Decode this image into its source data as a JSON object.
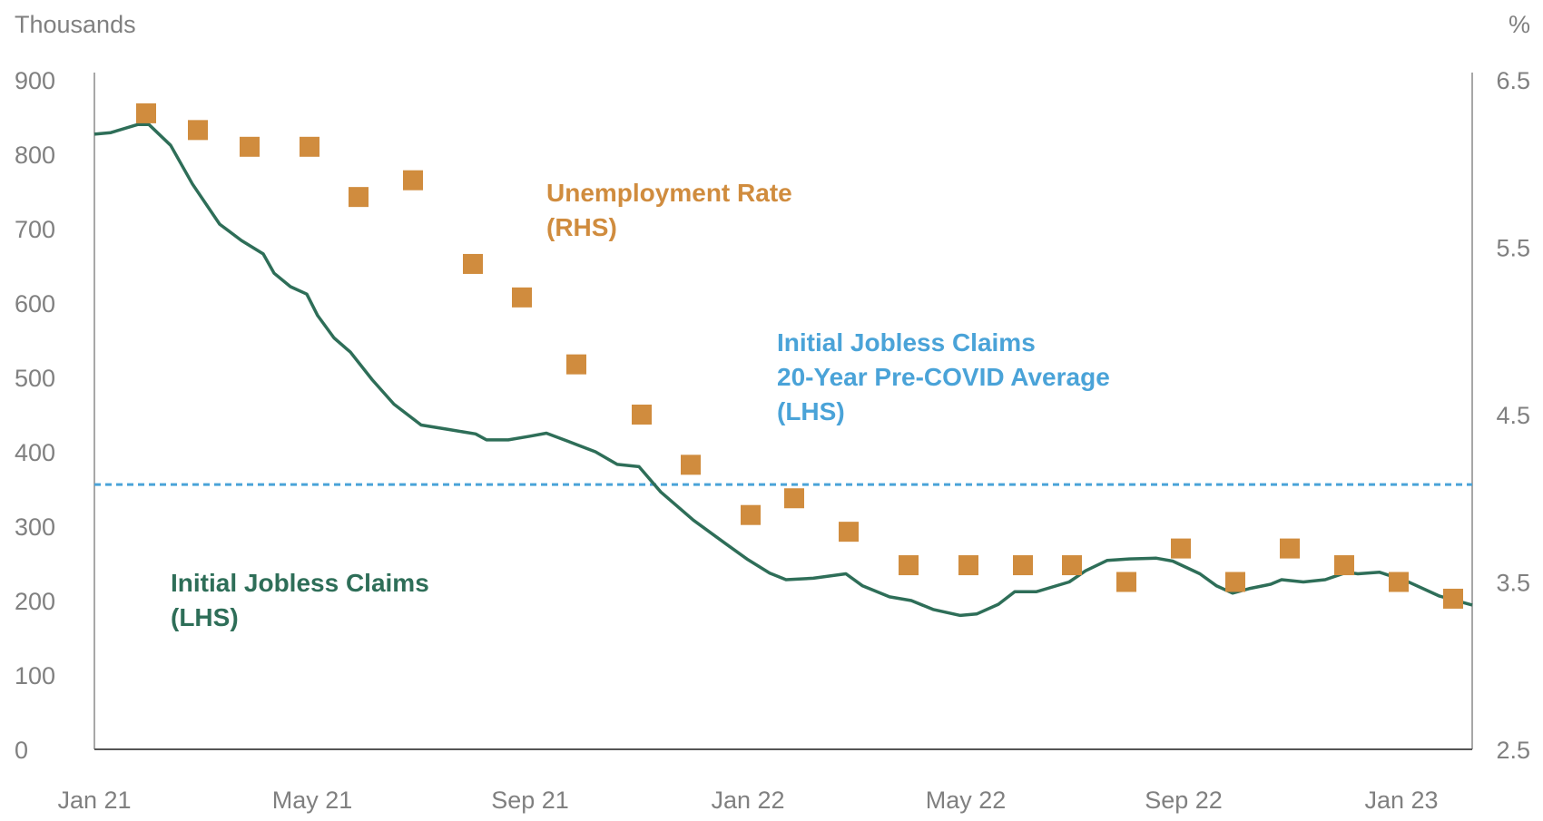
{
  "chart_data": {
    "type": "line",
    "left_axis": {
      "unit_label": "Thousands",
      "ticks": [
        "900",
        "800",
        "700",
        "600",
        "500",
        "400",
        "300",
        "200",
        "100",
        "0"
      ],
      "range": [
        0,
        900
      ]
    },
    "right_axis": {
      "unit_label": "%",
      "ticks": [
        "6.5",
        "5.5",
        "4.5",
        "3.5",
        "2.5"
      ],
      "range": [
        2.5,
        6.5
      ]
    },
    "x_axis": {
      "ticks": [
        "Jan 21",
        "May 21",
        "Sep 21",
        "Jan 22",
        "May 22",
        "Sep 22",
        "Jan 23"
      ],
      "range_months": [
        0,
        25.3
      ]
    },
    "colors": {
      "claims": "#2e6e58",
      "unemployment": "#d08c3e",
      "average": "#4aa3d8",
      "axis": "#8a8a8a"
    },
    "labels": {
      "unemployment": [
        "Unemployment Rate",
        "(RHS)"
      ],
      "average": [
        "Initial Jobless Claims",
        "20-Year Pre-COVID Average",
        "(LHS)"
      ],
      "claims": [
        "Initial Jobless Claims",
        "(LHS)"
      ]
    },
    "series": [
      {
        "name": "Initial Jobless Claims (LHS)",
        "axis": "left",
        "x": [
          0,
          0.3,
          0.8,
          1.0,
          1.4,
          1.8,
          2.3,
          2.7,
          3.1,
          3.3,
          3.6,
          3.9,
          4.1,
          4.4,
          4.7,
          5.1,
          5.5,
          6.0,
          6.5,
          7.0,
          7.2,
          7.6,
          8.0,
          8.3,
          8.7,
          9.2,
          9.6,
          10.0,
          10.4,
          11.0,
          11.6,
          12.0,
          12.4,
          12.7,
          13.2,
          13.8,
          14.1,
          14.6,
          15.0,
          15.4,
          15.9,
          16.2,
          16.6,
          16.9,
          17.3,
          17.9,
          18.2,
          18.6,
          19.0,
          19.5,
          19.8,
          20.3,
          20.6,
          20.9,
          21.2,
          21.6,
          21.8,
          22.2,
          22.6,
          23.0,
          23.2,
          23.6,
          24.1,
          24.7,
          25.3
        ],
        "y": [
          827,
          829,
          840,
          840,
          812,
          760,
          706,
          684,
          666,
          640,
          622,
          612,
          583,
          553,
          534,
          497,
          464,
          436,
          430,
          424,
          416,
          416,
          421,
          425,
          414,
          400,
          383,
          380,
          346,
          308,
          276,
          255,
          237,
          228,
          230,
          236,
          220,
          205,
          200,
          188,
          180,
          182,
          195,
          212,
          212,
          225,
          240,
          254,
          256,
          257,
          253,
          236,
          220,
          210,
          216,
          222,
          228,
          225,
          228,
          238,
          236,
          238,
          226,
          206,
          194
        ]
      },
      {
        "name": "Unemployment Rate (RHS)",
        "axis": "right",
        "x": [
          0.95,
          1.9,
          2.85,
          3.95,
          4.85,
          5.85,
          6.95,
          7.85,
          8.85,
          10.05,
          10.95,
          12.05,
          12.85,
          13.85,
          14.95,
          16.05,
          17.05,
          17.95,
          18.95,
          19.95,
          20.95,
          21.95,
          22.95,
          23.95,
          24.95
        ],
        "y": [
          6.3,
          6.2,
          6.1,
          6.1,
          5.8,
          5.9,
          5.4,
          5.2,
          4.8,
          4.5,
          4.2,
          3.9,
          4.0,
          3.8,
          3.6,
          3.6,
          3.6,
          3.6,
          3.5,
          3.7,
          3.5,
          3.7,
          3.6,
          3.5,
          3.4
        ]
      },
      {
        "name": "Initial Jobless Claims 20-Year Pre-COVID Average (LHS)",
        "axis": "left",
        "y": [
          356
        ]
      }
    ]
  }
}
